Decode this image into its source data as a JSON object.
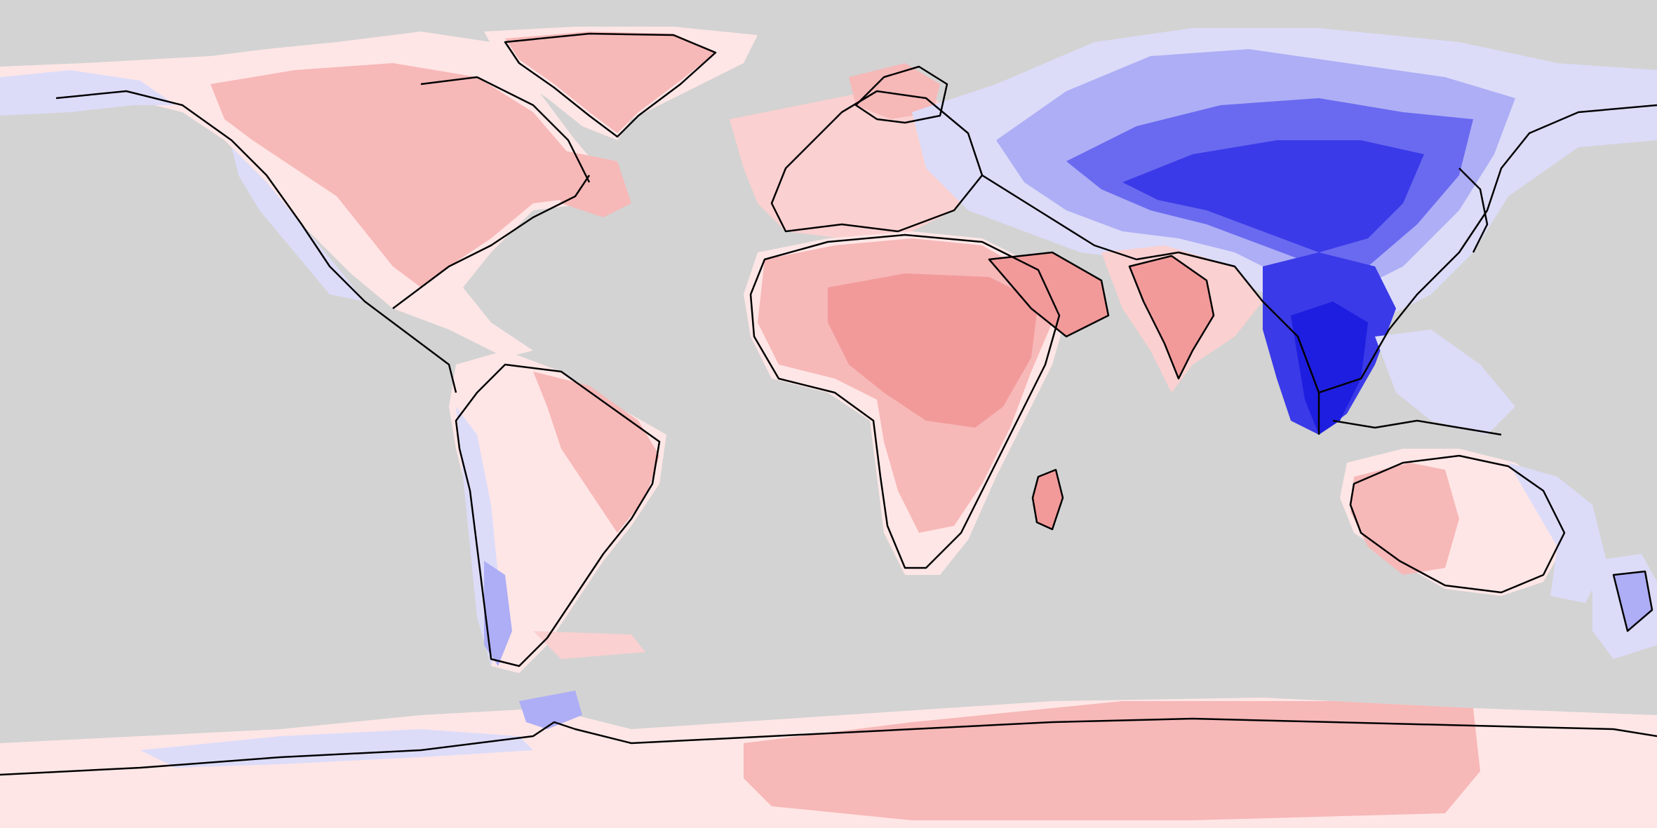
{
  "map": {
    "projection": "equirectangular",
    "extent": {
      "lon": [
        -180,
        180
      ],
      "lat": [
        -90,
        90
      ]
    },
    "ocean_color": "#d3d3d3",
    "coastline_color": "#000000",
    "legend": "none",
    "title": ""
  },
  "palette": {
    "blue_darkest": "#1e1ee0",
    "blue_dark": "#3a3ae8",
    "blue_medium": "#6a6af0",
    "blue_light": "#aeaef6",
    "blue_pale": "#dcdcf9",
    "neutral": "#ffe6e6",
    "red_pale": "#fbd0d0",
    "red_light": "#f7b8b8",
    "red_medium": "#f29a9a"
  },
  "regions": [
    {
      "name": "north-america",
      "base": "red_light"
    },
    {
      "name": "greenland",
      "base": "red_light"
    },
    {
      "name": "south-america",
      "base": "red_pale"
    },
    {
      "name": "africa",
      "base": "red_light"
    },
    {
      "name": "arabia-sahara",
      "base": "red_medium"
    },
    {
      "name": "europe",
      "base": "red_pale"
    },
    {
      "name": "asia",
      "base": "blue_light"
    },
    {
      "name": "southeast-asia",
      "base": "blue_darkest"
    },
    {
      "name": "india",
      "base": "red_light"
    },
    {
      "name": "australia",
      "base": "red_light"
    },
    {
      "name": "new-zealand",
      "base": "blue_pale"
    },
    {
      "name": "antarctica",
      "base": "red_light"
    }
  ]
}
